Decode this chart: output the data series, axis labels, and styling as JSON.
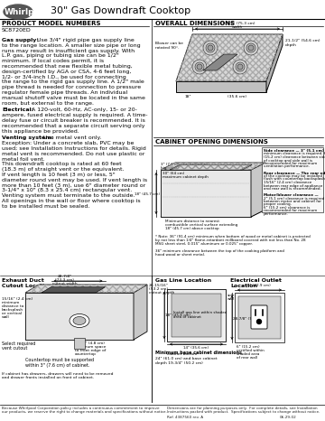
{
  "title": "30\" Gas Downdraft Cooktop",
  "brand": "Whirlpool",
  "model": "SC8720ED",
  "bg_color": "#ffffff",
  "left_col_header": "PRODUCT MODEL NUMBERS",
  "right_col_header": "OVERALL DIMENSIONS",
  "cabinet_header": "CABINET OPENING DIMENSIONS",
  "footer_left1": "Because Whirlpool Corporation policy includes a continuous commitment to improve",
  "footer_left2": "our products, we reserve the right to change materials and specifications without notice.",
  "footer_right1": "Dimensions are for planning purposes only.  For complete details, see Installation",
  "footer_right2": "Instructions packed with product.  Specifications subject to change without notice.",
  "footer_ref": "Ref. 4387560 rev. A",
  "footer_date": "06-29-02",
  "gas_lines": [
    "Gas supply:  Use 3/4\" rigid pipe gas supply line",
    "to the range location. A smaller size pipe or long",
    "runs may result in insufficient gas supply. With",
    "L.P. gas, piping or tubing size can be 1/2\"",
    "minimum. If local codes permit, it is",
    "recommended that new flexible metal tubing,",
    "design-certified by AGA or CSA, 4-6 feet long,",
    "1/2- or 3/4-inch I.D., be used for connecting",
    "the range to the rigid gas supply line. A 1/2\" male",
    "pipe thread is needed for connection to pressure",
    "regulator female pipe threads. An individual",
    "manual shutoff valve must be located in the same",
    "room, but external to the range."
  ],
  "elec_lines": [
    "Electrical:  A 120-volt, 60-Hz, AC-only, 15- or 20-",
    "ampere, fused electrical supply is required. A time-",
    "delay fuse or circuit breaker is recommended. It is",
    "recommended that a separate circuit serving only",
    "this appliance be provided."
  ],
  "vent_lines": [
    "Venting system:  Use metal vent only.",
    "Exception: Under a concrete slab, PVC may be",
    "used; see Installation Instructions for details. Rigid",
    "metal vent is recommended. Do not use plastic or",
    "metal foil vent.",
    "This downdraft cooktop is rated at 60 feet",
    "(18.3 m) of straight vent or the equivalent.",
    "If vent length is 10 feet (3 m) or less, 5\"",
    "diameter round vent may be used. If vent length is",
    "more than 10 feet (3 m), use 6\" diameter round or",
    "3-1/4\" x 10\" (8.3 x 25.4 cm) rectangular vent.",
    "Venting system must terminate to the outside.",
    "All openings in the wall or floor where cooktop is",
    "to be installed must be sealed."
  ]
}
